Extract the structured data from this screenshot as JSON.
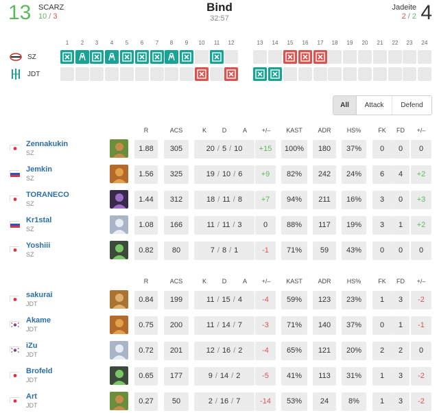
{
  "header": {
    "left": {
      "score": "13",
      "name": "SCARZ",
      "wins": "10",
      "losses": "3"
    },
    "right": {
      "score": "4",
      "name": "Jadeite",
      "wins": "2",
      "losses": "2"
    },
    "map": "Bind",
    "duration": "32:57"
  },
  "rounds": {
    "numbers": [
      "1",
      "2",
      "3",
      "4",
      "5",
      "6",
      "7",
      "8",
      "9",
      "10",
      "11",
      "12",
      "13",
      "14",
      "15",
      "16",
      "17",
      "18",
      "19",
      "20",
      "21",
      "22",
      "23",
      "24"
    ],
    "teams": [
      {
        "abbr": "SZ",
        "results": [
          "elim",
          "defuse",
          "elim",
          "defuse",
          "elim",
          "elim",
          "elim",
          "defuse",
          "elim",
          "",
          "elim",
          "",
          "",
          "",
          "elim",
          "elim",
          "elim",
          "",
          "",
          "",
          "",
          "",
          "",
          ""
        ]
      },
      {
        "abbr": "JDT",
        "results": [
          "",
          "",
          "",
          "",
          "",
          "",
          "",
          "",
          "",
          "elim",
          "",
          "elim",
          "elim",
          "elim",
          "",
          "",
          "",
          "",
          "",
          "",
          "",
          "",
          "",
          ""
        ]
      }
    ]
  },
  "filter": {
    "all": "All",
    "attack": "Attack",
    "defend": "Defend"
  },
  "columns": [
    "R",
    "ACS",
    "K",
    "D",
    "A",
    "+/–",
    "KAST",
    "ADR",
    "HS%",
    "FK",
    "FD",
    "+/–"
  ],
  "colors": {
    "green": "#5cb85c",
    "red": "#d9534f",
    "teal": "#1aa394",
    "link": "#2a6fa8"
  },
  "teams": [
    {
      "players": [
        {
          "name": "Zennakukin",
          "team": "SZ",
          "flag": "jp",
          "agent": "skye-icon",
          "r": "1.88",
          "acs": "305",
          "k": "20",
          "d": "5",
          "a": "10",
          "pm": "+15",
          "kast": "100%",
          "adr": "180",
          "hs": "37%",
          "fk": "0",
          "fd": "0",
          "fpm": "0"
        },
        {
          "name": "Jemkin",
          "team": "SZ",
          "flag": "ru",
          "agent": "raze-icon",
          "r": "1.56",
          "acs": "325",
          "k": "19",
          "d": "10",
          "a": "6",
          "pm": "+9",
          "kast": "82%",
          "adr": "242",
          "hs": "24%",
          "fk": "6",
          "fd": "4",
          "fpm": "+2"
        },
        {
          "name": "TORANECO",
          "team": "SZ",
          "flag": "jp",
          "agent": "astra-icon",
          "r": "1.44",
          "acs": "312",
          "k": "18",
          "d": "11",
          "a": "8",
          "pm": "+7",
          "kast": "94%",
          "adr": "211",
          "hs": "16%",
          "fk": "3",
          "fd": "0",
          "fpm": "+3"
        },
        {
          "name": "Kr1stal",
          "team": "SZ",
          "flag": "ru",
          "agent": "jett-icon",
          "r": "1.08",
          "acs": "166",
          "k": "11",
          "d": "11",
          "a": "3",
          "pm": "0",
          "kast": "88%",
          "adr": "117",
          "hs": "19%",
          "fk": "3",
          "fd": "1",
          "fpm": "+2"
        },
        {
          "name": "Yoshiii",
          "team": "SZ",
          "flag": "jp",
          "agent": "viper-icon",
          "r": "0.82",
          "acs": "80",
          "k": "7",
          "d": "8",
          "a": "1",
          "pm": "-1",
          "kast": "71%",
          "adr": "59",
          "hs": "43%",
          "fk": "0",
          "fd": "0",
          "fpm": "0"
        }
      ]
    },
    {
      "players": [
        {
          "name": "sakurai",
          "team": "JDT",
          "flag": "jp",
          "agent": "sova-icon",
          "r": "0.84",
          "acs": "199",
          "k": "11",
          "d": "15",
          "a": "4",
          "pm": "-4",
          "kast": "59%",
          "adr": "123",
          "hs": "23%",
          "fk": "1",
          "fd": "3",
          "fpm": "-2"
        },
        {
          "name": "Akame",
          "team": "JDT",
          "flag": "kr",
          "agent": "raze-icon",
          "r": "0.75",
          "acs": "200",
          "k": "11",
          "d": "14",
          "a": "7",
          "pm": "-3",
          "kast": "71%",
          "adr": "140",
          "hs": "37%",
          "fk": "0",
          "fd": "1",
          "fpm": "-1"
        },
        {
          "name": "iZu",
          "team": "JDT",
          "flag": "kr",
          "agent": "jett-icon",
          "r": "0.72",
          "acs": "201",
          "k": "12",
          "d": "16",
          "a": "2",
          "pm": "-4",
          "kast": "65%",
          "adr": "121",
          "hs": "20%",
          "fk": "2",
          "fd": "2",
          "fpm": "0"
        },
        {
          "name": "Brofeld",
          "team": "JDT",
          "flag": "jp",
          "agent": "viper-icon",
          "r": "0.65",
          "acs": "177",
          "k": "9",
          "d": "14",
          "a": "2",
          "pm": "-5",
          "kast": "41%",
          "adr": "113",
          "hs": "31%",
          "fk": "1",
          "fd": "3",
          "fpm": "-2"
        },
        {
          "name": "Art",
          "team": "JDT",
          "flag": "jp",
          "agent": "skye-icon",
          "r": "0.27",
          "acs": "50",
          "k": "2",
          "d": "16",
          "a": "7",
          "pm": "-14",
          "kast": "53%",
          "adr": "24",
          "hs": "8%",
          "fk": "1",
          "fd": "3",
          "fpm": "-2"
        }
      ]
    }
  ]
}
